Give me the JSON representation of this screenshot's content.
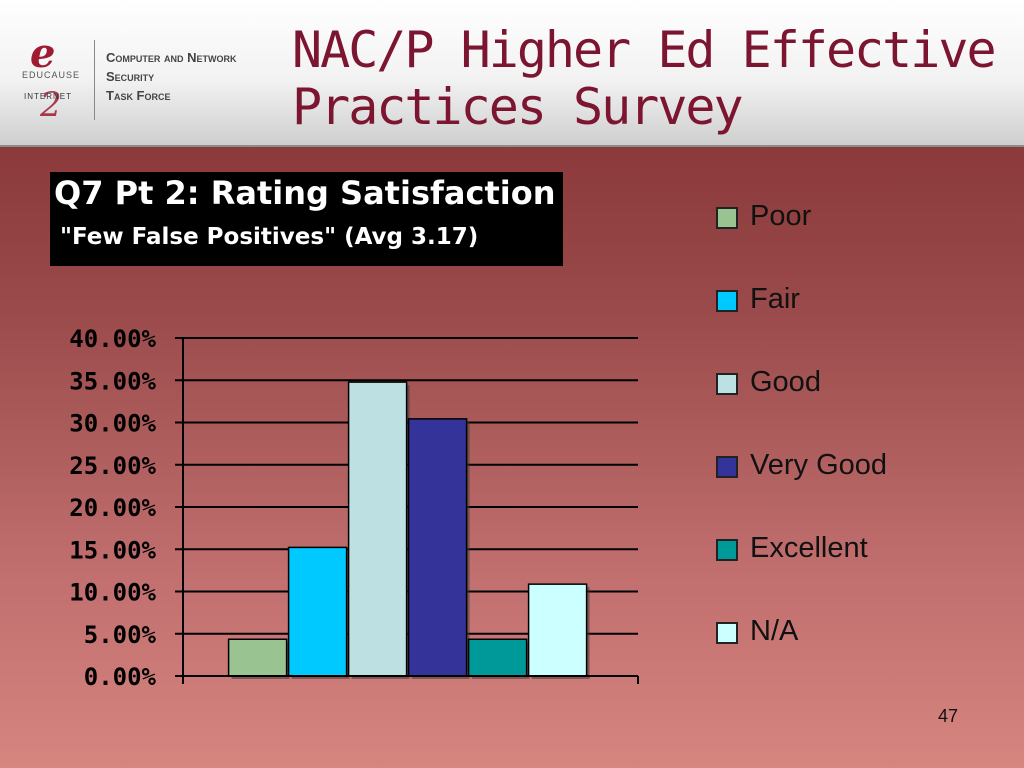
{
  "header": {
    "title_line1": "NAC/P Higher Ed Effective",
    "title_line2": "Practices Survey",
    "logo": {
      "e_mark": "e",
      "educause": "EDUCAUSE",
      "internet": "INTERNET",
      "two_mark": "2",
      "taskforce_line1": "Computer and Network",
      "taskforce_line2": "Security",
      "taskforce_line3": "Task Force"
    }
  },
  "chart_title": {
    "line1": "Q7 Pt 2: Rating Satisfaction",
    "line2": "\"Few False Positives\"  (Avg 3.17)"
  },
  "chart_data": {
    "type": "bar",
    "title": "Q7 Pt 2: Rating Satisfaction \"Few False Positives\" (Avg 3.17)",
    "categories": [
      "Poor",
      "Fair",
      "Good",
      "Very Good",
      "Excellent",
      "N/A"
    ],
    "values": [
      4.35,
      15.22,
      34.78,
      30.43,
      4.35,
      10.87
    ],
    "colors": [
      "#99c391",
      "#00c9ff",
      "#bde0e3",
      "#333399",
      "#009999",
      "#ccffff"
    ],
    "ylim": [
      0,
      40
    ],
    "yticks": [
      "0.00%",
      "5.00%",
      "10.00%",
      "15.00%",
      "20.00%",
      "25.00%",
      "30.00%",
      "35.00%",
      "40.00%"
    ],
    "grid": true,
    "legend_position": "right"
  },
  "legend": [
    {
      "label": "Poor",
      "color": "#99c391"
    },
    {
      "label": "Fair",
      "color": "#00c9ff"
    },
    {
      "label": "Good",
      "color": "#bde0e3"
    },
    {
      "label": "Very Good",
      "color": "#333399"
    },
    {
      "label": "Excellent",
      "color": "#009999"
    },
    {
      "label": "N/A",
      "color": "#ccffff"
    }
  ],
  "page_number": "47"
}
